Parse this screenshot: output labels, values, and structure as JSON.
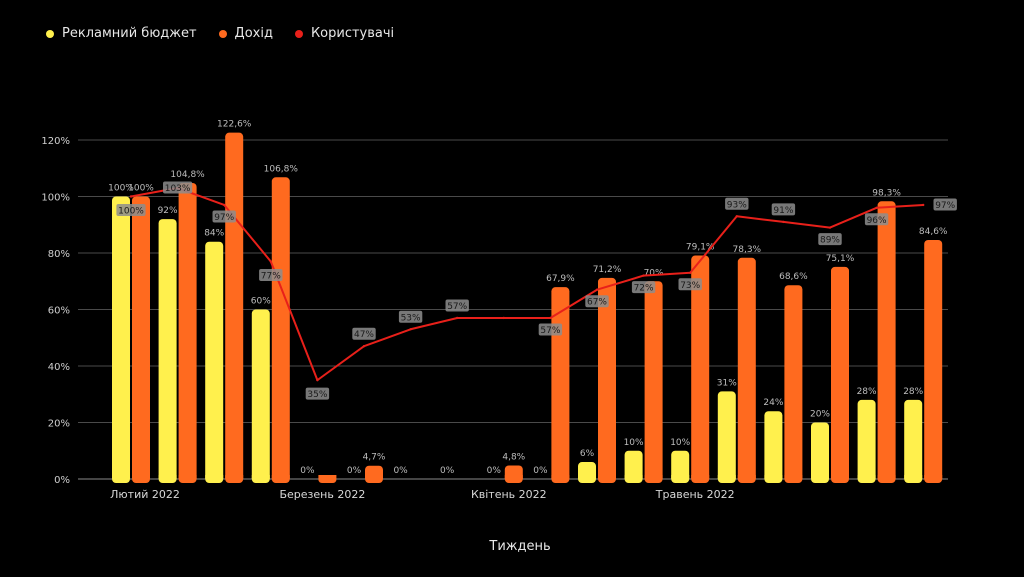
{
  "chart_data": {
    "type": "bar",
    "xlabel": "Тиждень",
    "ylabel": "",
    "ylim": [
      0,
      120
    ],
    "yticks": [
      "0%",
      "20%",
      "40%",
      "60%",
      "80%",
      "100%",
      "120%"
    ],
    "month_labels": [
      {
        "label": "Лютий 2022",
        "week_index": 0
      },
      {
        "label": "Березень 2022",
        "week_index": 4
      },
      {
        "label": "Квітень 2022",
        "week_index": 8
      },
      {
        "label": "Травень 2022",
        "week_index": 12
      }
    ],
    "legend_position": "top-left",
    "grid": true,
    "series": [
      {
        "name": "Рекламний бюджет",
        "type": "bar",
        "color": "#FFF04D",
        "values": [
          100,
          92,
          84,
          60,
          0,
          0,
          0,
          0,
          0,
          0,
          6,
          10,
          10,
          31,
          24,
          20,
          28,
          28
        ],
        "labels": [
          "100%",
          "92%",
          "84%",
          "60%",
          "0%",
          "0%",
          "0%",
          "0%",
          "0%",
          "0%",
          "6%",
          "10%",
          "10%",
          "31%",
          "24%",
          "20%",
          "28%",
          "28%"
        ]
      },
      {
        "name": "Дохід",
        "type": "bar",
        "color": "#FF6A1F",
        "values": [
          100,
          104.8,
          122.6,
          106.8,
          0.8,
          4.7,
          0,
          0,
          4.8,
          67.9,
          71.2,
          70,
          79.1,
          78.3,
          68.6,
          75.1,
          98.3,
          84.6
        ],
        "labels": [
          "100%",
          "104,8%",
          "122,6%",
          "106,8%",
          "",
          "4,7%",
          "",
          "",
          "4,8%",
          "67,9%",
          "71,2%",
          "70%",
          "79,1%",
          "78,3%",
          "68,6%",
          "75,1%",
          "98,3%",
          "84,6%"
        ]
      },
      {
        "name": "Користувачі",
        "type": "line",
        "color": "#E8201A",
        "values": [
          100,
          103,
          97,
          77,
          35,
          47,
          53,
          57,
          57,
          57,
          67,
          72,
          73,
          93,
          91,
          89,
          96,
          97
        ],
        "labels": [
          "100%",
          "103%",
          "97%",
          "77%",
          "35%",
          "47%",
          "53%",
          "57%",
          "",
          "57%",
          "67%",
          "72%",
          "73%",
          "93%",
          "91%",
          "89%",
          "96%",
          "97%"
        ]
      }
    ]
  }
}
